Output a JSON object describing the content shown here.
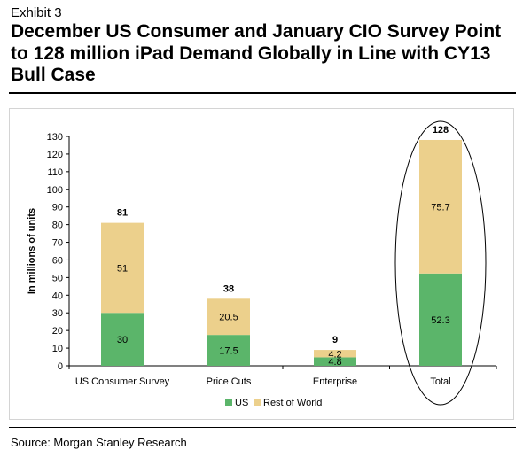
{
  "exhibit_label": "Exhibit 3",
  "title": "December US Consumer and January CIO Survey Point to 128 million iPad Demand Globally in Line with CY13 Bull Case",
  "source": "Source: Morgan Stanley Research",
  "colors": {
    "us": "#5bb56a",
    "rest_of_world": "#ecd08c"
  },
  "chart_data": {
    "type": "bar",
    "stacked": true,
    "categories": [
      "US Consumer Survey",
      "Price Cuts",
      "Enterprise",
      "Total"
    ],
    "series": [
      {
        "name": "US",
        "values": [
          30,
          17.5,
          4.8,
          52.3
        ]
      },
      {
        "name": "Rest of World",
        "values": [
          51,
          20.5,
          4.2,
          75.7
        ]
      }
    ],
    "totals": [
      81,
      38,
      9,
      128
    ],
    "ylabel": "In millions of units",
    "ylim": [
      0,
      130
    ],
    "yticks": [
      0,
      10,
      20,
      30,
      40,
      50,
      60,
      70,
      80,
      90,
      100,
      110,
      120,
      130
    ],
    "legend": {
      "position": "bottom",
      "entries": [
        "US",
        "Rest of World"
      ]
    },
    "highlight": "Total",
    "grid": false
  }
}
